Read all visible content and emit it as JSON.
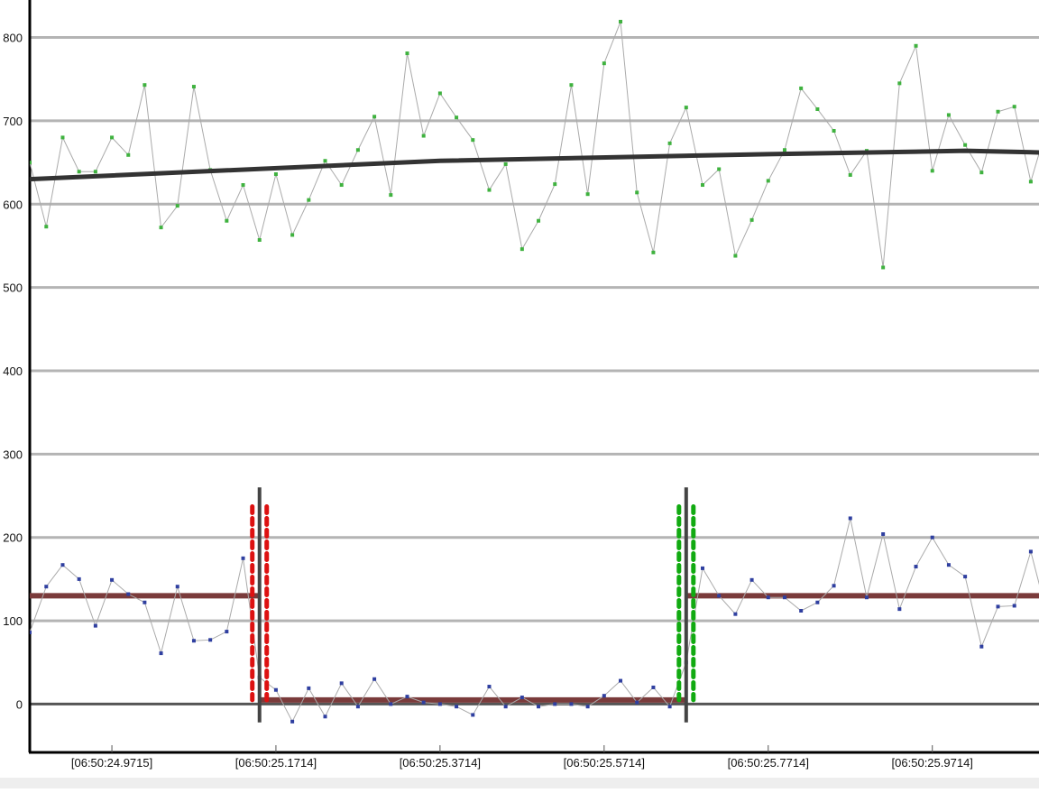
{
  "colors": {
    "grid": "#b4b4b4",
    "axis": "#000000",
    "connector": "#aaaaaa",
    "green_point": "#3fb23f",
    "blue_point": "#2f3fa0",
    "trend": "#333333",
    "baseline": "#7a3b3b",
    "marker_black": "#444444",
    "marker_red": "#dd1111",
    "marker_green": "#11aa11"
  },
  "chart_data": {
    "type": "line",
    "title": "",
    "xlabel": "",
    "ylabel": "",
    "ylim": [
      -58,
      845
    ],
    "xlim": [
      24.8714,
      26.1014
    ],
    "yticks": [
      0,
      100,
      200,
      300,
      400,
      500,
      600,
      700,
      800
    ],
    "xticks": [
      {
        "value": 24.9715,
        "label": "[06:50:24.9715]"
      },
      {
        "value": 25.1714,
        "label": "[06:50:25.1714]"
      },
      {
        "value": 25.3714,
        "label": "[06:50:25.3714]"
      },
      {
        "value": 25.5714,
        "label": "[06:50:25.5714]"
      },
      {
        "value": 25.7714,
        "label": "[06:50:25.7714]"
      },
      {
        "value": 25.9714,
        "label": "[06:50:25.9714]"
      }
    ],
    "grid": true,
    "series": [
      {
        "color": "#3fb23f",
        "points": [
          [
            24.8714,
            650
          ],
          [
            24.8915,
            573
          ],
          [
            24.9115,
            680
          ],
          [
            24.9315,
            639
          ],
          [
            24.9515,
            639
          ],
          [
            24.9715,
            680
          ],
          [
            24.9915,
            659
          ],
          [
            25.0114,
            743
          ],
          [
            25.0314,
            572
          ],
          [
            25.0514,
            598
          ],
          [
            25.0714,
            741
          ],
          [
            25.0914,
            641
          ],
          [
            25.1114,
            580
          ],
          [
            25.1314,
            623
          ],
          [
            25.1514,
            557
          ],
          [
            25.1714,
            636
          ],
          [
            25.1914,
            563
          ],
          [
            25.2114,
            605
          ],
          [
            25.2314,
            652
          ],
          [
            25.2514,
            623
          ],
          [
            25.2714,
            665
          ],
          [
            25.2914,
            705
          ],
          [
            25.3114,
            611
          ],
          [
            25.3314,
            781
          ],
          [
            25.3514,
            682
          ],
          [
            25.3714,
            733
          ],
          [
            25.3914,
            704
          ],
          [
            25.4114,
            677
          ],
          [
            25.4314,
            617
          ],
          [
            25.4514,
            648
          ],
          [
            25.4714,
            546
          ],
          [
            25.4914,
            580
          ],
          [
            25.5114,
            624
          ],
          [
            25.5314,
            743
          ],
          [
            25.5514,
            612
          ],
          [
            25.5714,
            769
          ],
          [
            25.5914,
            819
          ],
          [
            25.6114,
            614
          ],
          [
            25.6314,
            542
          ],
          [
            25.6514,
            673
          ],
          [
            25.6714,
            716
          ],
          [
            25.6914,
            623
          ],
          [
            25.7114,
            642
          ],
          [
            25.7314,
            538
          ],
          [
            25.7514,
            581
          ],
          [
            25.7714,
            628
          ],
          [
            25.7914,
            665
          ],
          [
            25.8114,
            739
          ],
          [
            25.8314,
            714
          ],
          [
            25.8514,
            688
          ],
          [
            25.8714,
            635
          ],
          [
            25.8914,
            664
          ],
          [
            25.9114,
            524
          ],
          [
            25.9314,
            745
          ],
          [
            25.9514,
            790
          ],
          [
            25.9714,
            640
          ],
          [
            25.9914,
            707
          ],
          [
            26.0114,
            671
          ],
          [
            26.0314,
            638
          ],
          [
            26.0514,
            711
          ],
          [
            26.0714,
            717
          ],
          [
            26.0914,
            627
          ],
          [
            26.1114,
            694
          ],
          [
            26.1314,
            661
          ],
          [
            26.1514,
            672
          ]
        ]
      },
      {
        "color": "#2f3fa0",
        "points": [
          [
            24.8714,
            86
          ],
          [
            24.8915,
            141
          ],
          [
            24.9115,
            167
          ],
          [
            24.9315,
            150
          ],
          [
            24.9515,
            94
          ],
          [
            24.9715,
            149
          ],
          [
            24.9915,
            132
          ],
          [
            25.0114,
            122
          ],
          [
            25.0314,
            61
          ],
          [
            25.0514,
            141
          ],
          [
            25.0714,
            76
          ],
          [
            25.0914,
            77
          ],
          [
            25.1114,
            87
          ],
          [
            25.1314,
            175
          ],
          [
            25.1514,
            32
          ],
          [
            25.1714,
            17
          ],
          [
            25.1914,
            -21
          ],
          [
            25.2114,
            19
          ],
          [
            25.2314,
            -15
          ],
          [
            25.2514,
            25
          ],
          [
            25.2714,
            -3
          ],
          [
            25.2914,
            30
          ],
          [
            25.3114,
            0
          ],
          [
            25.3314,
            9
          ],
          [
            25.3514,
            2
          ],
          [
            25.3714,
            0
          ],
          [
            25.3914,
            -3
          ],
          [
            25.4114,
            -13
          ],
          [
            25.4314,
            21
          ],
          [
            25.4514,
            -3
          ],
          [
            25.4714,
            8
          ],
          [
            25.4914,
            -3
          ],
          [
            25.5114,
            0
          ],
          [
            25.5314,
            0
          ],
          [
            25.5514,
            -3
          ],
          [
            25.5714,
            10
          ],
          [
            25.5914,
            28
          ],
          [
            25.6114,
            2
          ],
          [
            25.6314,
            20
          ],
          [
            25.6514,
            -3
          ],
          [
            25.6714,
            50
          ],
          [
            25.6914,
            163
          ],
          [
            25.7114,
            130
          ],
          [
            25.7314,
            108
          ],
          [
            25.7514,
            149
          ],
          [
            25.7714,
            128
          ],
          [
            25.7914,
            128
          ],
          [
            25.8114,
            112
          ],
          [
            25.8314,
            122
          ],
          [
            25.8514,
            142
          ],
          [
            25.8714,
            223
          ],
          [
            25.8914,
            128
          ],
          [
            25.9114,
            204
          ],
          [
            25.9314,
            114
          ],
          [
            25.9514,
            165
          ],
          [
            25.9714,
            200
          ],
          [
            25.9914,
            167
          ],
          [
            26.0114,
            153
          ],
          [
            26.0314,
            69
          ],
          [
            26.0514,
            117
          ],
          [
            26.0714,
            118
          ],
          [
            26.0914,
            183
          ],
          [
            26.1114,
            107
          ],
          [
            26.1314,
            108
          ]
        ]
      }
    ],
    "trend_line": [
      [
        24.8714,
        630
      ],
      [
        25.3714,
        652
      ],
      [
        25.7714,
        660
      ],
      [
        26.0114,
        664
      ],
      [
        26.1514,
        661
      ]
    ],
    "baseline_segments": [
      {
        "x0": 24.8714,
        "x1": 25.1514,
        "y": 130
      },
      {
        "x0": 25.1514,
        "x1": 25.6714,
        "y": 5
      },
      {
        "x0": 25.6714,
        "x1": 26.1514,
        "y": 130
      }
    ],
    "event_markers": [
      {
        "x": 25.1514,
        "dotted_color": "red"
      },
      {
        "x": 25.6714,
        "dotted_color": "green"
      }
    ]
  }
}
